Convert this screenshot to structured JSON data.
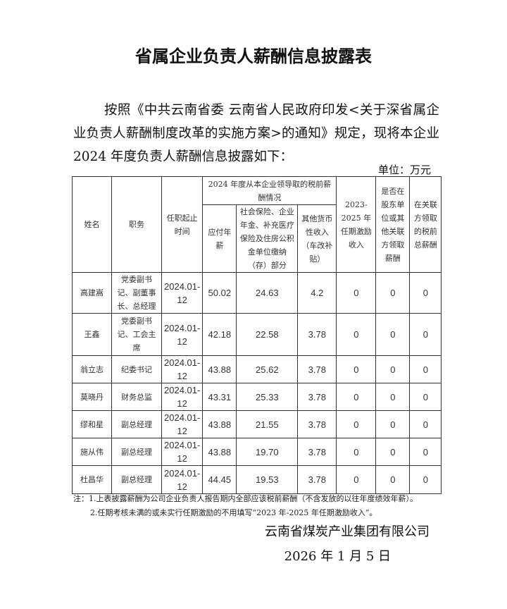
{
  "title": "省属企业负责人薪酬信息披露表",
  "paragraph": "按照《中共云南省委 云南省人民政府印发<关于深省属企业负责人薪酬制度改革的实施方案>的通知》规定，现将本企业 2024 年度负责人薪酬信息披露如下：",
  "unit": "单位：万元",
  "table": {
    "headers": {
      "name": "姓名",
      "position": "职务",
      "term": "任职起止时间",
      "group": "2024 年度从本企业领导取的税前薪酬情况",
      "salary": "应付年薪",
      "insurance": "社会保险、企业年金、补充医疗保险及住房公积金单位缴纳（存）部分",
      "other": "其他货币性收入（车改补贴）",
      "incentive": "2023-2025 年任期激励收入",
      "shareholder": "是否在股东单位或其他关联方领取薪酬",
      "related": "在关联方领取的税前总薪酬"
    },
    "rows": [
      {
        "name": "高建嵩",
        "position": "党委副书记、副董事长、总经理",
        "term": "2024.01-12",
        "salary": "50.02",
        "insurance": "24.63",
        "other": "4.2",
        "incentive": "0",
        "shareholder": "0",
        "related": "0"
      },
      {
        "name": "王鑫",
        "position": "党委副书记、工会主席",
        "term": "2024.01-12",
        "salary": "42.18",
        "insurance": "22.58",
        "other": "3.78",
        "incentive": "0",
        "shareholder": "0",
        "related": "0"
      },
      {
        "name": "翁立志",
        "position": "纪委书记",
        "term": "2024.01-12",
        "salary": "43.88",
        "insurance": "25.62",
        "other": "3.78",
        "incentive": "0",
        "shareholder": "0",
        "related": "0"
      },
      {
        "name": "莫晓丹",
        "position": "财务总监",
        "term": "2024.01-12",
        "salary": "43.31",
        "insurance": "25.33",
        "other": "3.78",
        "incentive": "0",
        "shareholder": "0",
        "related": "0"
      },
      {
        "name": "缪和星",
        "position": "副总经理",
        "term": "2024.01-12",
        "salary": "43.88",
        "insurance": "21.55",
        "other": "3.78",
        "incentive": "0",
        "shareholder": "0",
        "related": "0"
      },
      {
        "name": "施从伟",
        "position": "副总经理",
        "term": "2024.01-12",
        "salary": "43.88",
        "insurance": "19.70",
        "other": "3.78",
        "incentive": "0",
        "shareholder": "0",
        "related": "0"
      },
      {
        "name": "杜昌华",
        "position": "副总经理",
        "term": "2024.01-12",
        "salary": "44.45",
        "insurance": "19.53",
        "other": "3.78",
        "incentive": "0",
        "shareholder": "0",
        "related": "0"
      }
    ]
  },
  "notes": [
    "注：1.上表披露薪酬为公司企业负责人报告期内全部应该税前薪酬（不含发放的以往年度绩效年薪）。",
    "2.任期考核未满的或未实行任期激励的不用填写“2023 年-2025 年任期激励收入”。"
  ],
  "signature": "云南省煤炭产业集团有限公司",
  "date": "2026 年 1 月 5 日"
}
